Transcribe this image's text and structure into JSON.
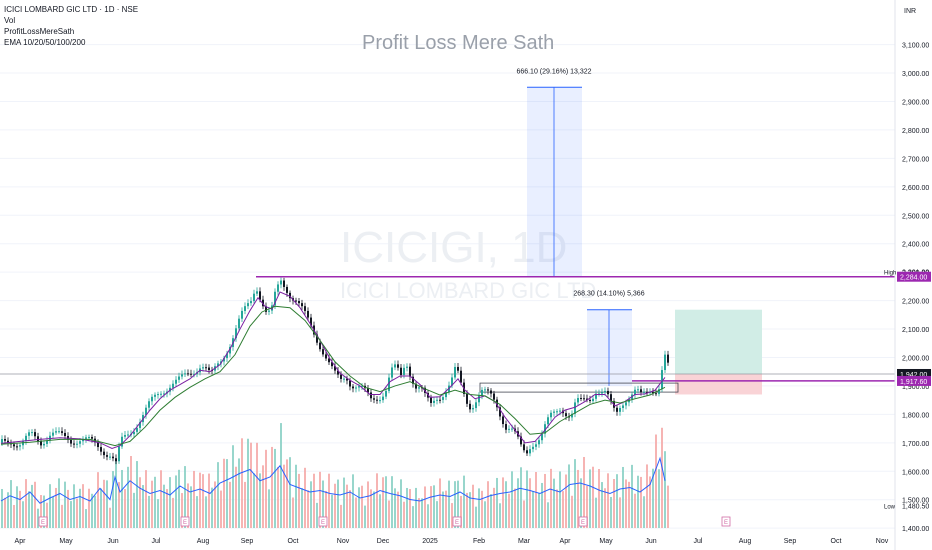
{
  "legend": {
    "symbol_line": "ICICI LOMBARD GIC LTD · 1D · NSE",
    "volume": "Vol",
    "indicator": "ProfitLossMereSath",
    "ema": "EMA 10/20/50/100/200"
  },
  "watermark": "Profit Loss Mere Sath",
  "background_symbol": {
    "ticker": "ICICIGI, 1D",
    "name": "ICICI LOMBARD GIC LTD"
  },
  "chart_data": {
    "type": "candlestick",
    "currency": "INR",
    "y_range": [
      1390,
      3190
    ],
    "y_ticks": [
      {
        "value": 3100,
        "label": "3,100.00"
      },
      {
        "value": 3000,
        "label": "3,000.00"
      },
      {
        "value": 2900,
        "label": "2,900.00"
      },
      {
        "value": 2800,
        "label": "2,800.00"
      },
      {
        "value": 2700,
        "label": "2,700.00"
      },
      {
        "value": 2600,
        "label": "2,600.00"
      },
      {
        "value": 2500,
        "label": "2,500.00"
      },
      {
        "value": 2400,
        "label": "2,400.00"
      },
      {
        "value": 2300,
        "label": "2,300.00"
      },
      {
        "value": 2200,
        "label": "2,200.00"
      },
      {
        "value": 2100,
        "label": "2,100.00"
      },
      {
        "value": 2000,
        "label": "2,000.00"
      },
      {
        "value": 1900,
        "label": "1,900.00"
      },
      {
        "value": 1800,
        "label": "1,800.00"
      },
      {
        "value": 1700,
        "label": "1,700.00"
      },
      {
        "value": 1600,
        "label": "1,600.00"
      },
      {
        "value": 1500,
        "label": "1,500.00"
      },
      {
        "value": 1400,
        "label": "1,400.00"
      }
    ],
    "x_labels": [
      "Apr",
      "May",
      "Jun",
      "Jul",
      "Aug",
      "Sep",
      "Oct",
      "Nov",
      "Dec",
      "2025",
      "Feb",
      "Mar",
      "Apr",
      "May",
      "Jun",
      "Jul",
      "Aug",
      "Sep",
      "Oct",
      "Nov"
    ],
    "price_path": [
      [
        1,
        1700
      ],
      [
        10,
        1710
      ],
      [
        20,
        1695
      ],
      [
        30,
        1725
      ],
      [
        40,
        1705
      ],
      [
        50,
        1735
      ],
      [
        60,
        1720
      ],
      [
        70,
        1710
      ],
      [
        80,
        1715
      ],
      [
        90,
        1700
      ],
      [
        100,
        1680
      ],
      [
        110,
        1660
      ],
      [
        115,
        1625
      ],
      [
        120,
        1700
      ],
      [
        130,
        1740
      ],
      [
        140,
        1790
      ],
      [
        150,
        1840
      ],
      [
        160,
        1880
      ],
      [
        170,
        1910
      ],
      [
        180,
        1920
      ],
      [
        190,
        1945
      ],
      [
        200,
        1980
      ],
      [
        205,
        1960
      ],
      [
        210,
        1930
      ],
      [
        215,
        1960
      ],
      [
        220,
        1990
      ],
      [
        230,
        2060
      ],
      [
        240,
        2140
      ],
      [
        250,
        2200
      ],
      [
        255,
        2260
      ],
      [
        260,
        2210
      ],
      [
        265,
        2160
      ],
      [
        270,
        2150
      ],
      [
        275,
        2230
      ],
      [
        280,
        2270
      ],
      [
        285,
        2250
      ],
      [
        290,
        2220
      ],
      [
        295,
        2200
      ],
      [
        300,
        2170
      ],
      [
        310,
        2110
      ],
      [
        320,
        2040
      ],
      [
        325,
        2000
      ],
      [
        330,
        1960
      ],
      [
        335,
        1930
      ],
      [
        340,
        1920
      ],
      [
        345,
        1940
      ],
      [
        350,
        1910
      ],
      [
        355,
        1900
      ],
      [
        360,
        1890
      ],
      [
        370,
        1850
      ],
      [
        380,
        1870
      ],
      [
        385,
        1890
      ],
      [
        390,
        1950
      ],
      [
        395,
        1960
      ],
      [
        400,
        1930
      ],
      [
        405,
        1990
      ],
      [
        410,
        1940
      ],
      [
        415,
        1900
      ],
      [
        420,
        1890
      ],
      [
        425,
        1850
      ],
      [
        430,
        1830
      ],
      [
        435,
        1860
      ],
      [
        440,
        1870
      ],
      [
        450,
        1910
      ],
      [
        455,
        1960
      ],
      [
        460,
        1900
      ],
      [
        465,
        1850
      ],
      [
        470,
        1830
      ],
      [
        480,
        1880
      ],
      [
        490,
        1860
      ],
      [
        495,
        1840
      ],
      [
        500,
        1800
      ],
      [
        505,
        1760
      ],
      [
        510,
        1750
      ],
      [
        515,
        1720
      ],
      [
        520,
        1680
      ],
      [
        525,
        1660
      ],
      [
        530,
        1700
      ],
      [
        540,
        1720
      ],
      [
        545,
        1760
      ],
      [
        550,
        1790
      ],
      [
        555,
        1810
      ],
      [
        560,
        1830
      ],
      [
        565,
        1810
      ],
      [
        570,
        1790
      ],
      [
        575,
        1840
      ],
      [
        580,
        1840
      ],
      [
        585,
        1850
      ],
      [
        590,
        1860
      ],
      [
        595,
        1890
      ],
      [
        600,
        1880
      ],
      [
        605,
        1870
      ],
      [
        610,
        1830
      ],
      [
        615,
        1800
      ],
      [
        620,
        1840
      ],
      [
        625,
        1860
      ],
      [
        630,
        1870
      ],
      [
        635,
        1880
      ],
      [
        640,
        1860
      ],
      [
        645,
        1870
      ],
      [
        650,
        1890
      ],
      [
        655,
        1890
      ],
      [
        660,
        1910
      ],
      [
        662,
        2010
      ],
      [
        665,
        2000
      ],
      [
        668,
        1950
      ]
    ],
    "ema_fast": [
      [
        1,
        1698
      ],
      [
        20,
        1705
      ],
      [
        40,
        1712
      ],
      [
        60,
        1718
      ],
      [
        80,
        1714
      ],
      [
        100,
        1700
      ],
      [
        112,
        1680
      ],
      [
        120,
        1690
      ],
      [
        130,
        1725
      ],
      [
        140,
        1770
      ],
      [
        150,
        1815
      ],
      [
        160,
        1855
      ],
      [
        170,
        1885
      ],
      [
        180,
        1905
      ],
      [
        190,
        1925
      ],
      [
        200,
        1955
      ],
      [
        210,
        1950
      ],
      [
        220,
        1975
      ],
      [
        230,
        2030
      ],
      [
        240,
        2100
      ],
      [
        250,
        2165
      ],
      [
        258,
        2210
      ],
      [
        265,
        2180
      ],
      [
        272,
        2170
      ],
      [
        280,
        2230
      ],
      [
        290,
        2215
      ],
      [
        300,
        2175
      ],
      [
        310,
        2120
      ],
      [
        320,
        2060
      ],
      [
        330,
        1995
      ],
      [
        340,
        1945
      ],
      [
        350,
        1920
      ],
      [
        360,
        1900
      ],
      [
        370,
        1870
      ],
      [
        380,
        1870
      ],
      [
        390,
        1915
      ],
      [
        400,
        1935
      ],
      [
        410,
        1935
      ],
      [
        420,
        1905
      ],
      [
        430,
        1860
      ],
      [
        440,
        1862
      ],
      [
        450,
        1895
      ],
      [
        458,
        1925
      ],
      [
        465,
        1885
      ],
      [
        475,
        1855
      ],
      [
        485,
        1865
      ],
      [
        495,
        1845
      ],
      [
        505,
        1790
      ],
      [
        515,
        1745
      ],
      [
        525,
        1700
      ],
      [
        535,
        1705
      ],
      [
        545,
        1745
      ],
      [
        555,
        1790
      ],
      [
        565,
        1815
      ],
      [
        575,
        1825
      ],
      [
        585,
        1845
      ],
      [
        595,
        1870
      ],
      [
        605,
        1870
      ],
      [
        615,
        1830
      ],
      [
        625,
        1845
      ],
      [
        635,
        1870
      ],
      [
        645,
        1872
      ],
      [
        655,
        1885
      ],
      [
        665,
        1930
      ]
    ],
    "ema_slow": [
      [
        1,
        1695
      ],
      [
        30,
        1702
      ],
      [
        60,
        1712
      ],
      [
        90,
        1712
      ],
      [
        115,
        1690
      ],
      [
        130,
        1705
      ],
      [
        145,
        1755
      ],
      [
        160,
        1815
      ],
      [
        175,
        1860
      ],
      [
        190,
        1895
      ],
      [
        205,
        1925
      ],
      [
        220,
        1950
      ],
      [
        235,
        2010
      ],
      [
        250,
        2110
      ],
      [
        262,
        2160
      ],
      [
        275,
        2180
      ],
      [
        290,
        2175
      ],
      [
        305,
        2130
      ],
      [
        320,
        2060
      ],
      [
        335,
        1985
      ],
      [
        350,
        1935
      ],
      [
        365,
        1895
      ],
      [
        380,
        1880
      ],
      [
        395,
        1900
      ],
      [
        410,
        1915
      ],
      [
        425,
        1890
      ],
      [
        440,
        1868
      ],
      [
        455,
        1885
      ],
      [
        470,
        1870
      ],
      [
        485,
        1865
      ],
      [
        500,
        1835
      ],
      [
        515,
        1785
      ],
      [
        530,
        1730
      ],
      [
        545,
        1735
      ],
      [
        560,
        1775
      ],
      [
        575,
        1805
      ],
      [
        590,
        1835
      ],
      [
        605,
        1850
      ],
      [
        620,
        1840
      ],
      [
        635,
        1855
      ],
      [
        650,
        1868
      ],
      [
        665,
        1895
      ]
    ],
    "volume_path": [
      [
        1,
        28
      ],
      [
        10,
        35
      ],
      [
        20,
        30
      ],
      [
        30,
        40
      ],
      [
        40,
        25
      ],
      [
        50,
        32
      ],
      [
        60,
        38
      ],
      [
        70,
        30
      ],
      [
        80,
        34
      ],
      [
        90,
        28
      ],
      [
        100,
        45
      ],
      [
        110,
        30
      ],
      [
        115,
        60
      ],
      [
        120,
        40
      ],
      [
        130,
        55
      ],
      [
        140,
        45
      ],
      [
        150,
        38
      ],
      [
        160,
        42
      ],
      [
        170,
        36
      ],
      [
        180,
        48
      ],
      [
        190,
        40
      ],
      [
        200,
        44
      ],
      [
        210,
        38
      ],
      [
        220,
        52
      ],
      [
        230,
        58
      ],
      [
        240,
        65
      ],
      [
        250,
        70
      ],
      [
        260,
        55
      ],
      [
        270,
        60
      ],
      [
        280,
        75
      ],
      [
        290,
        50
      ],
      [
        300,
        45
      ],
      [
        310,
        40
      ],
      [
        320,
        42
      ],
      [
        330,
        38
      ],
      [
        340,
        36
      ],
      [
        350,
        40
      ],
      [
        360,
        32
      ],
      [
        370,
        35
      ],
      [
        380,
        42
      ],
      [
        390,
        38
      ],
      [
        400,
        35
      ],
      [
        410,
        30
      ],
      [
        420,
        28
      ],
      [
        430,
        33
      ],
      [
        440,
        36
      ],
      [
        450,
        34
      ],
      [
        460,
        40
      ],
      [
        470,
        32
      ],
      [
        480,
        30
      ],
      [
        490,
        35
      ],
      [
        500,
        38
      ],
      [
        510,
        40
      ],
      [
        520,
        45
      ],
      [
        530,
        42
      ],
      [
        540,
        38
      ],
      [
        550,
        44
      ],
      [
        560,
        40
      ],
      [
        570,
        50
      ],
      [
        580,
        52
      ],
      [
        590,
        48
      ],
      [
        600,
        42
      ],
      [
        610,
        38
      ],
      [
        620,
        44
      ],
      [
        630,
        46
      ],
      [
        640,
        40
      ],
      [
        650,
        50
      ],
      [
        660,
        85
      ],
      [
        665,
        55
      ]
    ],
    "reference_lines": {
      "high": {
        "value": 2301.9,
        "label": "High",
        "price_label": "2,301.90"
      },
      "resistance": {
        "value": 2284.0,
        "label": "2,284.00"
      },
      "current": {
        "value": 1942.0,
        "label": "1,942.00"
      },
      "support": {
        "value": 1917.6,
        "label": "1,917.60"
      },
      "low": {
        "value": 1480.5,
        "label": "Low",
        "price_label": "1,480.50"
      }
    },
    "measure_1": {
      "label": "666.10 (29.16%) 13,322",
      "from": 2284,
      "to": 2950
    },
    "measure_2": {
      "label": "268.30 (14.10%) 5,366",
      "from": 1900,
      "to": 2168
    },
    "position_box": {
      "target": 2168,
      "entry": 1942,
      "stop": 1870
    },
    "colors": {
      "up": "#26a69a",
      "down": "#131722",
      "ema_fast": "#7b1fa2",
      "ema_slow": "#2e7d32",
      "vol_line": "#2962ff",
      "level": "#9c27b0",
      "measure": "#2962ff",
      "profit": "#d1ede6",
      "loss": "#f9d3d6",
      "grid": "#f0f3fa",
      "axis_text": "#131722"
    }
  }
}
